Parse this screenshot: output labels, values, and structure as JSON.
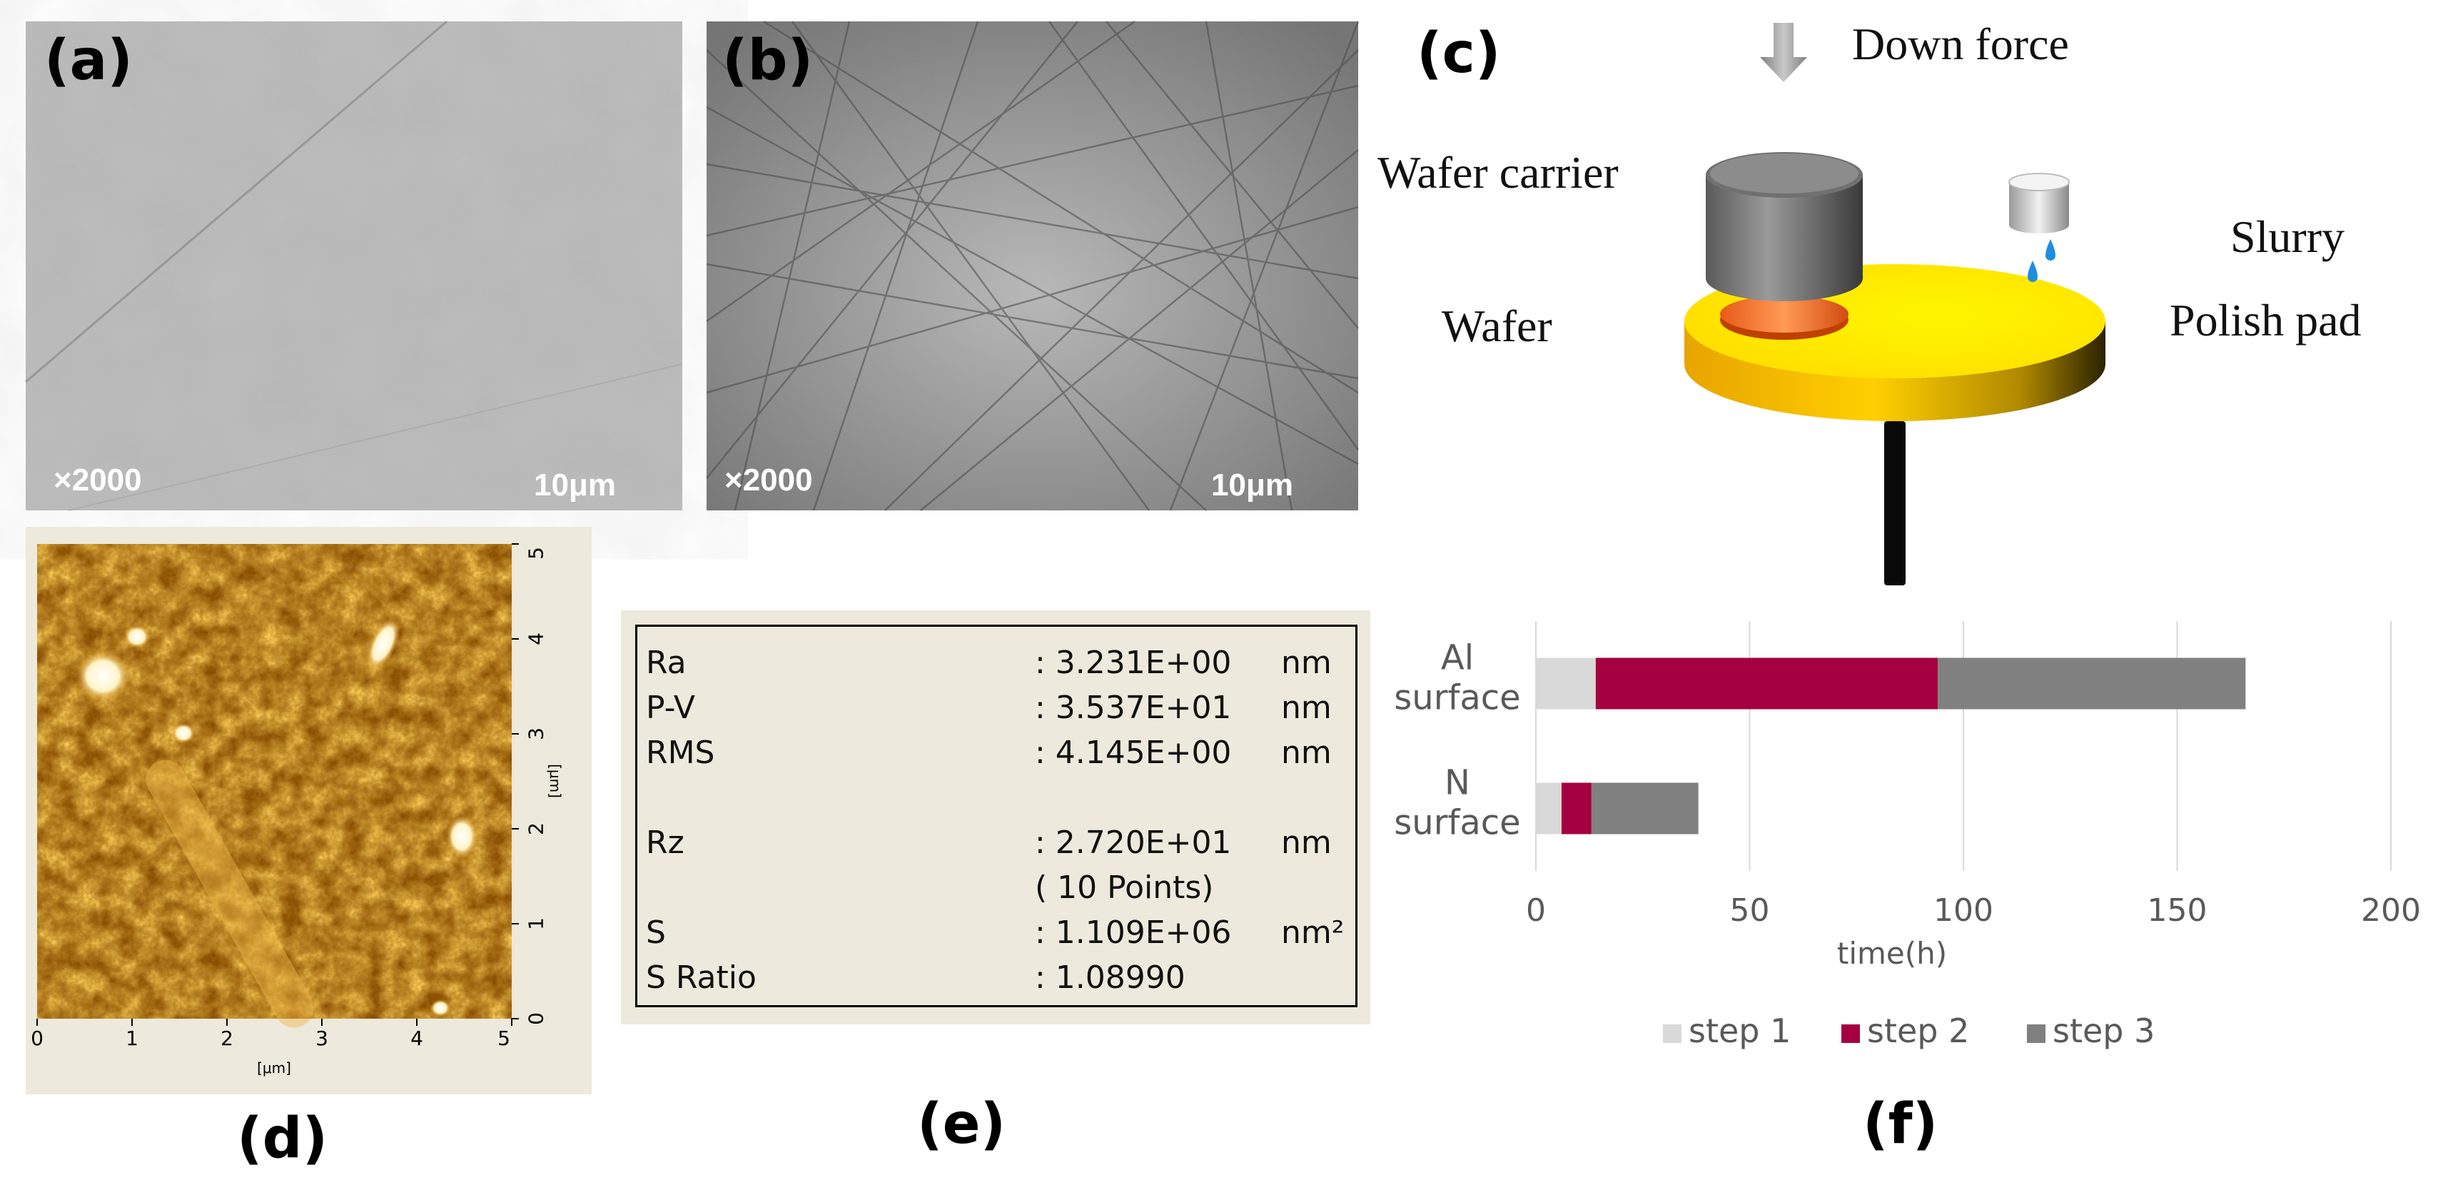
{
  "panels": {
    "a": {
      "label": "(a)",
      "magnification": "×2000",
      "scale": "10μm"
    },
    "b": {
      "label": "(b)",
      "magnification": "×2000",
      "scale": "10μm"
    },
    "c": {
      "label": "(c)",
      "down_force": "Down force",
      "wafer_carrier": "Wafer carrier",
      "slurry": "Slurry",
      "wafer": "Wafer",
      "polish_pad": "Polish pad"
    },
    "d": {
      "label": "(d)",
      "x_ticks": [
        "0",
        "1",
        "2",
        "3",
        "4",
        "5"
      ],
      "y_ticks": [
        "0",
        "1",
        "2",
        "3",
        "4",
        "5"
      ],
      "x_unit": "[μm]",
      "y_unit": "[μm]"
    },
    "e": {
      "label": "(e)",
      "rows": [
        {
          "name": "Ra",
          "value": ": 3.231E+00",
          "unit": "nm"
        },
        {
          "name": "P-V",
          "value": ": 3.537E+01",
          "unit": "nm"
        },
        {
          "name": "RMS",
          "value": ": 4.145E+00",
          "unit": "nm"
        },
        {
          "name": "Rz",
          "value": ": 2.720E+01",
          "unit": "nm"
        },
        {
          "name": "",
          "value": "( 10  Points)",
          "unit": ""
        },
        {
          "name": "S",
          "value": ": 1.109E+06",
          "unit": "nm²"
        },
        {
          "name": "S Ratio",
          "value": ": 1.08990",
          "unit": ""
        }
      ]
    },
    "f": {
      "label": "(f)"
    }
  },
  "chart_data": {
    "type": "bar",
    "orientation": "horizontal",
    "stacked": true,
    "categories": [
      "Al surface",
      "N surface"
    ],
    "category_lines": [
      [
        "Al",
        "surface"
      ],
      [
        "N",
        "surface"
      ]
    ],
    "series": [
      {
        "name": "step 1",
        "color": "#d9d9d9",
        "values": [
          14,
          6
        ]
      },
      {
        "name": "step 2",
        "color": "#a50040",
        "values": [
          80,
          7
        ]
      },
      {
        "name": "step 3",
        "color": "#808080",
        "values": [
          72,
          25
        ]
      }
    ],
    "xlabel": "time(h)",
    "xlim": [
      0,
      200
    ],
    "x_ticks": [
      0,
      50,
      100,
      150,
      200
    ],
    "grid": true,
    "legend": "bottom"
  }
}
